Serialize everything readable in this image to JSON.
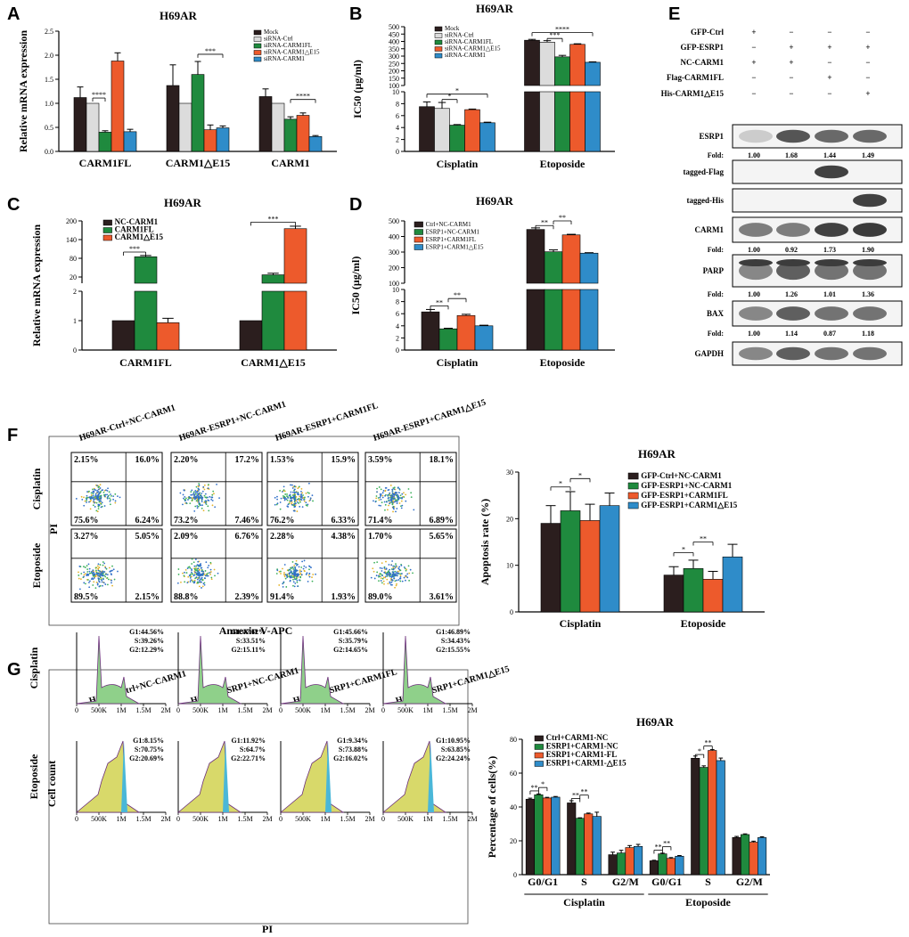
{
  "colors": {
    "black": "#2b1e1e",
    "gray": "#dcdcdc",
    "green": "#1f8a3e",
    "orange": "#ed5a2c",
    "blue": "#2f8cc9"
  },
  "panel_labels": {
    "A": "A",
    "B": "B",
    "C": "C",
    "D": "D",
    "E": "E",
    "F": "F",
    "G": "G"
  },
  "chart_data": [
    {
      "id": "A",
      "type": "bar",
      "title": "H69AR",
      "ylabel": "Relative mRNA expression",
      "ylim": [
        0,
        2.5
      ],
      "yticks": [
        "0.0",
        "0.5",
        "1.0",
        "1.5",
        "2.0",
        "2.5"
      ],
      "categories": [
        "CARM1FL",
        "CARM1△E15",
        "CARM1"
      ],
      "series": [
        {
          "name": "Mock",
          "color": "black",
          "values": [
            1.12,
            1.37,
            1.14
          ],
          "err": [
            0.22,
            0.43,
            0.16
          ]
        },
        {
          "name": "siRNA-Ctrl",
          "color": "gray",
          "values": [
            1.0,
            1.0,
            1.0
          ],
          "err": [
            0,
            0,
            0
          ]
        },
        {
          "name": "siRNA-CARM1FL",
          "color": "green",
          "values": [
            0.4,
            1.6,
            0.67
          ],
          "err": [
            0.03,
            0.27,
            0.05
          ]
        },
        {
          "name": "siRNA-CARM1△E15",
          "color": "orange",
          "values": [
            1.88,
            0.45,
            0.75
          ],
          "err": [
            0.17,
            0.1,
            0.05
          ]
        },
        {
          "name": "siRNA-CARM1",
          "color": "blue",
          "values": [
            0.41,
            0.49,
            0.31
          ],
          "err": [
            0.05,
            0.04,
            0.02
          ]
        }
      ],
      "sig": [
        {
          "label": "****",
          "cat": 0,
          "s1": 1,
          "s2": 2,
          "y": 1.11
        },
        {
          "label": "***",
          "cat": 1,
          "s1": 2,
          "s2": 4,
          "y": 2.02
        },
        {
          "label": "****",
          "cat": 2,
          "s1": 2,
          "s2": 4,
          "y": 1.08
        }
      ]
    },
    {
      "id": "B",
      "type": "bar",
      "title": "H69AR",
      "ylabel": "IC50 (μg/ml)",
      "broken": true,
      "lower": {
        "ylim": [
          0,
          10
        ],
        "yticks": [
          "0",
          "2",
          "4",
          "6",
          "8",
          "10"
        ]
      },
      "upper": {
        "ylim": [
          100,
          500
        ],
        "yticks": [
          "100",
          "150",
          "200",
          "250",
          "300",
          "350",
          "400",
          "450",
          "500"
        ]
      },
      "categories": [
        "Cisplatin",
        "Etoposide"
      ],
      "series": [
        {
          "name": "Mock",
          "color": "black",
          "values": [
            7.5,
            408
          ],
          "err": [
            0.8,
            6
          ]
        },
        {
          "name": "siRNA-Ctrl",
          "color": "gray",
          "values": [
            7.2,
            395
          ],
          "err": [
            1.0,
            10
          ]
        },
        {
          "name": "siRNA-CARM1FL",
          "color": "green",
          "values": [
            4.4,
            295
          ],
          "err": [
            0.1,
            10
          ]
        },
        {
          "name": "siRNA-CARM1△E15",
          "color": "orange",
          "values": [
            7.0,
            380
          ],
          "err": [
            0.1,
            4
          ]
        },
        {
          "name": "siRNA-CARM1",
          "color": "blue",
          "values": [
            4.8,
            258
          ],
          "err": [
            0.1,
            3
          ]
        }
      ],
      "sig": [
        {
          "label": "*",
          "cat": 0,
          "s1": 1,
          "s2": 2,
          "y": 8.7
        },
        {
          "label": "*",
          "cat": 0,
          "s1": 0,
          "s2": 4,
          "y": 9.6
        },
        {
          "label": "***",
          "cat": 1,
          "s1": 1,
          "s2": 2,
          "y": 420
        },
        {
          "label": "****",
          "cat": 1,
          "s1": 0,
          "s2": 4,
          "y": 460
        }
      ]
    },
    {
      "id": "C",
      "type": "bar",
      "title": "H69AR",
      "ylabel": "Relative mRNA expression",
      "broken": true,
      "lower": {
        "ylim": [
          0,
          2
        ],
        "yticks": [
          "0",
          "1",
          "2"
        ]
      },
      "upper": {
        "ylim": [
          0,
          200
        ],
        "yticks": [
          "20",
          "80",
          "140",
          "200"
        ]
      },
      "categories": [
        "CARM1FL",
        "CARM1△E15"
      ],
      "series": [
        {
          "name": "NC-CARM1",
          "color": "black",
          "values": [
            1.0,
            1.0
          ],
          "err": [
            0,
            0
          ]
        },
        {
          "name": "CARM1FL",
          "color": "green",
          "values": [
            85,
            27
          ],
          "err": [
            4,
            5
          ]
        },
        {
          "name": "CARM1△E15",
          "color": "orange",
          "values": [
            0.93,
            175
          ],
          "err": [
            0.15,
            8
          ]
        }
      ],
      "sig": [
        {
          "label": "***",
          "cat": 0,
          "s1": 0,
          "s2": 1,
          "y": 100
        },
        {
          "label": "***",
          "cat": 1,
          "s1": 0,
          "s2": 2,
          "y": 196
        }
      ]
    },
    {
      "id": "D",
      "type": "bar",
      "title": "H69AR",
      "ylabel": "IC50 (μg/ml)",
      "broken": true,
      "lower": {
        "ylim": [
          0,
          10
        ],
        "yticks": [
          "0",
          "2",
          "4",
          "6",
          "8",
          "10"
        ]
      },
      "upper": {
        "ylim": [
          100,
          500
        ],
        "yticks": [
          "100",
          "200",
          "300",
          "400",
          "500"
        ]
      },
      "categories": [
        "Cisplatin",
        "Etoposide"
      ],
      "series": [
        {
          "name": "Ctrl+NC-CARM1",
          "color": "black",
          "values": [
            6.3,
            445
          ],
          "err": [
            0.4,
            10
          ]
        },
        {
          "name": "ESRP1+NC-CARM1",
          "color": "green",
          "values": [
            3.5,
            302
          ],
          "err": [
            0.1,
            12
          ]
        },
        {
          "name": "ESRP1+CARM1FL",
          "color": "orange",
          "values": [
            5.7,
            410
          ],
          "err": [
            0.2,
            4
          ]
        },
        {
          "name": "ESRP1+CARM1△E15",
          "color": "blue",
          "values": [
            4.0,
            293
          ],
          "err": [
            0.1,
            3
          ]
        }
      ],
      "sig": [
        {
          "label": "**",
          "cat": 0,
          "s1": 0,
          "s2": 1,
          "y": 7.3
        },
        {
          "label": "**",
          "cat": 0,
          "s1": 1,
          "s2": 2,
          "y": 8.5
        },
        {
          "label": "**",
          "cat": 1,
          "s1": 0,
          "s2": 1,
          "y": 470
        },
        {
          "label": "**",
          "cat": 1,
          "s1": 1,
          "s2": 2,
          "y": 500
        }
      ]
    },
    {
      "id": "F",
      "type": "bar",
      "title": "H69AR",
      "ylabel": "Apoptosis rate (%)",
      "ylim": [
        0,
        30
      ],
      "yticks": [
        "0",
        "10",
        "20",
        "30"
      ],
      "categories": [
        "Cisplatin",
        "Etoposide"
      ],
      "series": [
        {
          "name": "GFP-Ctrl+NC-CARM1",
          "color": "black",
          "values": [
            19.0,
            7.9
          ],
          "err": [
            3.8,
            1.8
          ]
        },
        {
          "name": "GFP-ESRP1+NC-CARM1",
          "color": "green",
          "values": [
            21.7,
            9.3
          ],
          "err": [
            4.1,
            1.8
          ]
        },
        {
          "name": "GFP-ESRP1+CARM1FL",
          "color": "orange",
          "values": [
            19.6,
            7.0
          ],
          "err": [
            3.5,
            1.7
          ]
        },
        {
          "name": "GFP-ESRP1+CARM1△E15",
          "color": "blue",
          "values": [
            22.8,
            11.8
          ],
          "err": [
            2.7,
            2.7
          ]
        }
      ],
      "sig": [
        {
          "label": "*",
          "cat": 0,
          "s1": 0,
          "s2": 1,
          "y": 26.8
        },
        {
          "label": "*",
          "cat": 0,
          "s1": 1,
          "s2": 2,
          "y": 28.6
        },
        {
          "label": "*",
          "cat": 1,
          "s1": 0,
          "s2": 1,
          "y": 12.7
        },
        {
          "label": "**",
          "cat": 1,
          "s1": 1,
          "s2": 2,
          "y": 15.0
        }
      ]
    },
    {
      "id": "G",
      "type": "bar",
      "title": "H69AR",
      "ylabel": "Percentage of cells(%)",
      "ylim": [
        0,
        80
      ],
      "yticks": [
        "0",
        "20",
        "40",
        "60",
        "80"
      ],
      "categories": [
        "G0/G1",
        "S",
        "G2/M",
        "G0/G1",
        "S",
        "G2/M"
      ],
      "groups": [
        "Cisplatin",
        "Etoposide"
      ],
      "series": [
        {
          "name": "Ctrl+CARM1-NC",
          "color": "black",
          "values": [
            44.6,
            42.4,
            11.8,
            8.2,
            68.8,
            22.0
          ],
          "err": [
            0.6,
            1.3,
            1.5,
            0.3,
            1.3,
            0.6
          ]
        },
        {
          "name": "ESRP1+CARM1-NC",
          "color": "green",
          "values": [
            47.2,
            33.3,
            12.8,
            12.3,
            63.4,
            23.7
          ],
          "err": [
            0.5,
            0.3,
            1.6,
            0.4,
            0.9,
            0.4
          ]
        },
        {
          "name": "ESRP1+CARM1-FL",
          "color": "orange",
          "values": [
            45.3,
            35.9,
            16.0,
            9.6,
            73.4,
            19.2
          ],
          "err": [
            0.4,
            0.5,
            1.2,
            0.5,
            0.5,
            0.6
          ]
        },
        {
          "name": "ESRP1+CARM1-△E15",
          "color": "blue",
          "values": [
            45.8,
            34.4,
            16.7,
            10.9,
            67.4,
            21.9
          ],
          "err": [
            0.4,
            2.5,
            1.2,
            0.4,
            1.5,
            0.5
          ]
        }
      ],
      "sig": [
        {
          "label": "**",
          "cat": 0,
          "s1": 0,
          "s2": 1,
          "y": 49.5
        },
        {
          "label": "*",
          "cat": 0,
          "s1": 1,
          "s2": 2,
          "y": 51.5
        },
        {
          "label": "**",
          "cat": 1,
          "s1": 0,
          "s2": 1,
          "y": 45
        },
        {
          "label": "**",
          "cat": 1,
          "s1": 1,
          "s2": 2,
          "y": 47
        },
        {
          "label": "**",
          "cat": 3,
          "s1": 0,
          "s2": 1,
          "y": 14.5
        },
        {
          "label": "**",
          "cat": 3,
          "s1": 1,
          "s2": 2,
          "y": 16.5
        },
        {
          "label": "*",
          "cat": 4,
          "s1": 0,
          "s2": 1,
          "y": 71
        },
        {
          "label": "**",
          "cat": 4,
          "s1": 1,
          "s2": 2,
          "y": 76
        }
      ]
    }
  ],
  "blot": {
    "conditions": [
      {
        "label": "GFP-Ctrl",
        "values": [
          "+",
          "−",
          "−",
          "−"
        ]
      },
      {
        "label": "GFP-ESRP1",
        "values": [
          "−",
          "+",
          "+",
          "+"
        ]
      },
      {
        "label": "NC-CARM1",
        "values": [
          "+",
          "+",
          "−",
          "−"
        ]
      },
      {
        "label": "Flag-CARM1FL",
        "values": [
          "−",
          "−",
          "+",
          "−"
        ]
      },
      {
        "label": "His-CARM1△E15",
        "values": [
          "−",
          "−",
          "−",
          "+"
        ]
      }
    ],
    "rows": [
      {
        "label": "ESRP1",
        "fold": [
          "1.00",
          "1.68",
          "1.44",
          "1.49"
        ]
      },
      {
        "label": "tagged-Flag"
      },
      {
        "label": "tagged-His"
      },
      {
        "label": "CARM1",
        "fold": [
          "1.00",
          "0.92",
          "1.73",
          "1.90"
        ]
      },
      {
        "label": "PARP",
        "fold": [
          "1.00",
          "1.26",
          "1.01",
          "1.36"
        ]
      },
      {
        "label": "BAX",
        "fold": [
          "1.00",
          "1.14",
          "0.87",
          "1.18"
        ]
      },
      {
        "label": "GAPDH"
      }
    ],
    "fold_label": "Fold:"
  },
  "flow": {
    "groups": [
      "H69AR-Ctrl+NC-CARM1",
      "H69AR-ESRP1+NC-CARM1",
      "H69AR-ESRP1+CARM1FL",
      "H69AR-ESRP1+CARM1△E15"
    ],
    "rows": [
      "Cisplatin",
      "Etoposide"
    ],
    "xlabel": "Annexin V-APC",
    "ylabel": "PI",
    "quadrants": [
      [
        [
          "2.15%",
          "16.0%",
          "75.6%",
          "6.24%"
        ],
        [
          "2.20%",
          "17.2%",
          "73.2%",
          "7.46%"
        ],
        [
          "1.53%",
          "15.9%",
          "76.2%",
          "6.33%"
        ],
        [
          "3.59%",
          "18.1%",
          "71.4%",
          "6.89%"
        ]
      ],
      [
        [
          "3.27%",
          "5.05%",
          "89.5%",
          "2.15%"
        ],
        [
          "2.09%",
          "6.76%",
          "88.8%",
          "2.39%"
        ],
        [
          "2.28%",
          "4.38%",
          "91.4%",
          "1.93%"
        ],
        [
          "1.70%",
          "5.65%",
          "89.0%",
          "3.61%"
        ]
      ]
    ]
  },
  "cellcycle": {
    "groups": [
      "H69AR-Ctrl+NC-CARM1",
      "H69AR-ESRP1+NC-CARM1",
      "H69AR-ESRP1+CARM1FL",
      "H69AR-ESRP1+CARM1△E15"
    ],
    "rows": [
      "Cisplatin",
      "Etoposide"
    ],
    "xlabel": "PI",
    "ylabel": "Cell count",
    "xticks": [
      "0",
      "500K",
      "1M",
      "1.5M",
      "2M"
    ],
    "stats": [
      [
        [
          "G1:44.56%",
          "S:39.26%",
          "G2:12.29%"
        ],
        [
          "G1:47.62%",
          "S:33.51%",
          "G2:15.11%"
        ],
        [
          "G1:45.66%",
          "S:35.79%",
          "G2:14.65%"
        ],
        [
          "G1:46.89%",
          "S:34.43%",
          "G2:15.55%"
        ]
      ],
      [
        [
          "G1:8.15%",
          "S:70.75%",
          "G2:20.69%"
        ],
        [
          "G1:11.92%",
          "S:64.7%",
          "G2:22.71%"
        ],
        [
          "G1:9.34%",
          "S:73.88%",
          "G2:16.02%"
        ],
        [
          "G1:10.95%",
          "S:63.85%",
          "G2:24.24%"
        ]
      ]
    ]
  }
}
